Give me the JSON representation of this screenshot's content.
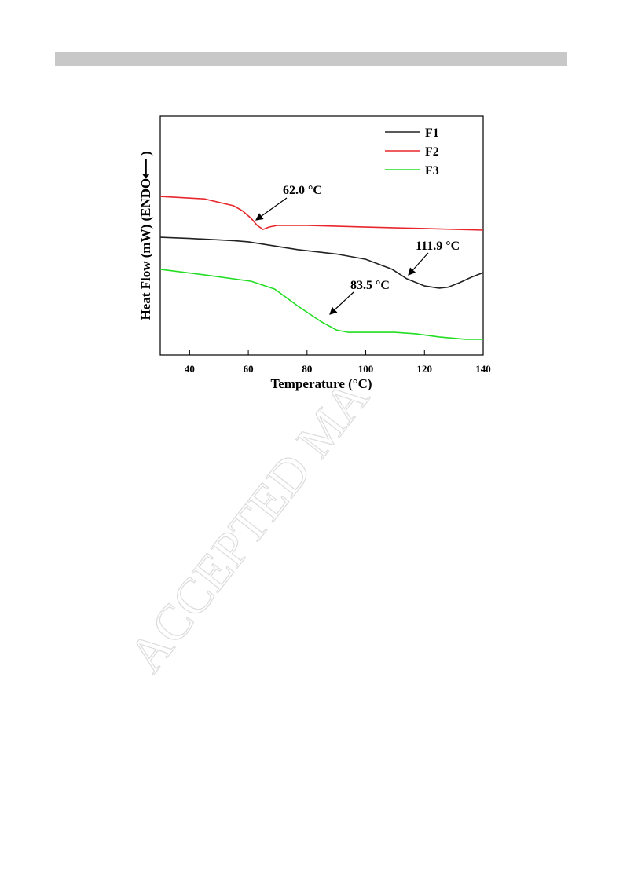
{
  "chart_data": {
    "type": "line",
    "xlabel": "Temperature (°C)",
    "ylabel": "Heat Flow (mW) (ENDO⟵ )",
    "xlim": [
      30,
      140
    ],
    "xticks": [
      40,
      60,
      80,
      100,
      120,
      140
    ],
    "ylim": [
      0,
      100
    ],
    "legend": "upper right",
    "series": [
      {
        "name": "F1",
        "color": "#222222",
        "x": [
          30,
          40,
          55,
          60,
          77,
          90,
          100,
          109,
          114,
          120,
          125,
          128,
          132,
          136,
          140
        ],
        "values": [
          49.3,
          48.8,
          47.9,
          47.4,
          44.1,
          42.3,
          40.1,
          35.9,
          31.9,
          28.9,
          28.0,
          28.4,
          30.3,
          32.6,
          34.5
        ]
      },
      {
        "name": "F2",
        "color": "#e8262b",
        "x": [
          30,
          45,
          55,
          58,
          61,
          63,
          65,
          67,
          70,
          80,
          100,
          120,
          140
        ],
        "values": [
          66.4,
          65.4,
          62.5,
          60.4,
          57.2,
          54.3,
          52.6,
          53.6,
          54.3,
          54.3,
          53.6,
          53.0,
          52.3
        ]
      },
      {
        "name": "F3",
        "color": "#22dd22",
        "x": [
          30,
          45,
          61,
          69,
          77,
          85,
          90,
          94,
          110,
          117,
          125,
          134,
          140
        ],
        "values": [
          35.9,
          33.6,
          30.9,
          27.6,
          20.4,
          13.8,
          10.5,
          9.5,
          9.5,
          8.9,
          7.6,
          6.6,
          6.6
        ]
      }
    ],
    "annotations": [
      {
        "text": "62.0 °C"
      },
      {
        "text": "111.9 °C"
      },
      {
        "text": "83.5 °C"
      }
    ]
  },
  "watermark": "ACCEPTED MA"
}
